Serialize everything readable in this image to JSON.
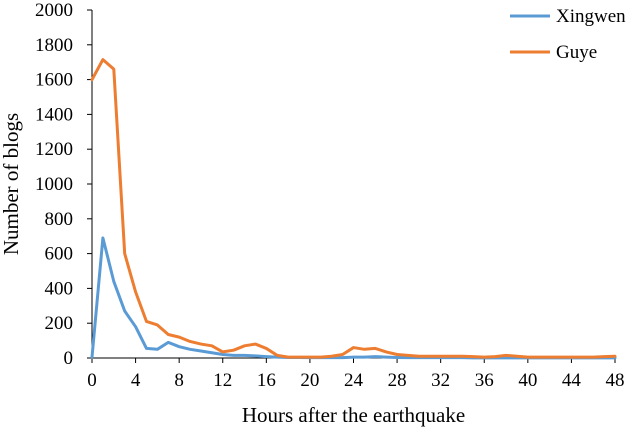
{
  "chart_data": {
    "type": "line",
    "title": "",
    "xlabel": "Hours after the earthquake",
    "ylabel": "Number of blogs",
    "xlim": [
      0,
      48
    ],
    "ylim": [
      0,
      2000
    ],
    "x_ticks": [
      0,
      4,
      8,
      12,
      16,
      20,
      24,
      28,
      32,
      36,
      40,
      44,
      48
    ],
    "y_ticks": [
      0,
      200,
      400,
      600,
      800,
      1000,
      1200,
      1400,
      1600,
      1800,
      2000
    ],
    "grid": false,
    "legend_position": "top-right",
    "x": [
      0,
      1,
      2,
      3,
      4,
      5,
      6,
      7,
      8,
      9,
      10,
      11,
      12,
      13,
      14,
      15,
      16,
      17,
      18,
      19,
      20,
      21,
      22,
      23,
      24,
      25,
      26,
      27,
      28,
      29,
      30,
      31,
      32,
      33,
      34,
      35,
      36,
      37,
      38,
      39,
      40,
      41,
      42,
      43,
      44,
      45,
      46,
      47,
      48
    ],
    "series": [
      {
        "name": "Xingwen",
        "color": "#5B9BD5",
        "values": [
          5,
          690,
          440,
          270,
          180,
          55,
          50,
          90,
          65,
          50,
          40,
          30,
          20,
          15,
          15,
          12,
          8,
          5,
          3,
          3,
          2,
          2,
          3,
          2,
          5,
          5,
          8,
          5,
          3,
          2,
          2,
          2,
          2,
          2,
          2,
          1,
          1,
          1,
          1,
          1,
          1,
          1,
          1,
          1,
          1,
          1,
          1,
          1,
          1
        ]
      },
      {
        "name": "Guye",
        "color": "#ED7D31",
        "values": [
          1600,
          1715,
          1660,
          600,
          380,
          210,
          190,
          135,
          120,
          95,
          80,
          70,
          35,
          45,
          70,
          80,
          55,
          15,
          5,
          5,
          5,
          5,
          10,
          20,
          60,
          50,
          55,
          35,
          20,
          15,
          10,
          10,
          10,
          10,
          10,
          8,
          5,
          8,
          15,
          10,
          5,
          5,
          5,
          5,
          5,
          5,
          5,
          8,
          10
        ]
      }
    ]
  }
}
